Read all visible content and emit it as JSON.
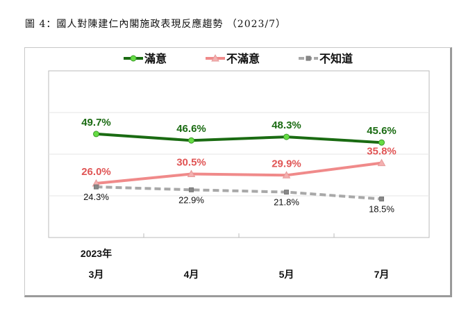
{
  "title": "圖 4：國人對陳建仁內閣施政表現反應趨勢 （2023/7）",
  "chart_data": {
    "type": "line",
    "title": "",
    "categories": [
      "3月",
      "4月",
      "5月",
      "7月"
    ],
    "year_label": "2023年",
    "ylim": [
      0,
      80
    ],
    "grid": true,
    "legend_position": "top",
    "series": [
      {
        "name": "滿意",
        "values": [
          49.7,
          46.6,
          48.3,
          45.6
        ],
        "labels": [
          "49.7%",
          "46.6%",
          "48.3%",
          "45.6%"
        ],
        "color": "#1a6b12",
        "marker_color": "#66dd44",
        "label_color": "#1a6b12",
        "marker": "circle",
        "dash": false
      },
      {
        "name": "不滿意",
        "values": [
          26.0,
          30.5,
          29.9,
          35.8
        ],
        "labels": [
          "26.0%",
          "30.5%",
          "29.9%",
          "35.8%"
        ],
        "color": "#f08a8a",
        "marker_color": "#f4b0b0",
        "label_color": "#e05555",
        "marker": "triangle",
        "dash": false
      },
      {
        "name": "不知道",
        "values": [
          24.3,
          22.9,
          21.8,
          18.5
        ],
        "labels": [
          "24.3%",
          "22.9%",
          "21.8%",
          "18.5%"
        ],
        "color": "#a8a8a8",
        "marker_color": "#888888",
        "label_color": "#111111",
        "marker": "square",
        "dash": true
      }
    ]
  }
}
